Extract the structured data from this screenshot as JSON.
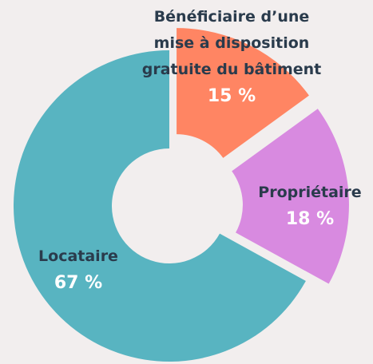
{
  "chart_data": {
    "type": "donut",
    "categories": [
      "Bénéficiaire d’une mise à disposition gratuite du bâtiment",
      "Propriétaire",
      "Locataire"
    ],
    "values": [
      15,
      18,
      67
    ],
    "value_labels": [
      "15 %",
      "18 %",
      "67 %"
    ],
    "colors": [
      "#ff8563",
      "#d88ae0",
      "#58b4c1"
    ]
  }
}
